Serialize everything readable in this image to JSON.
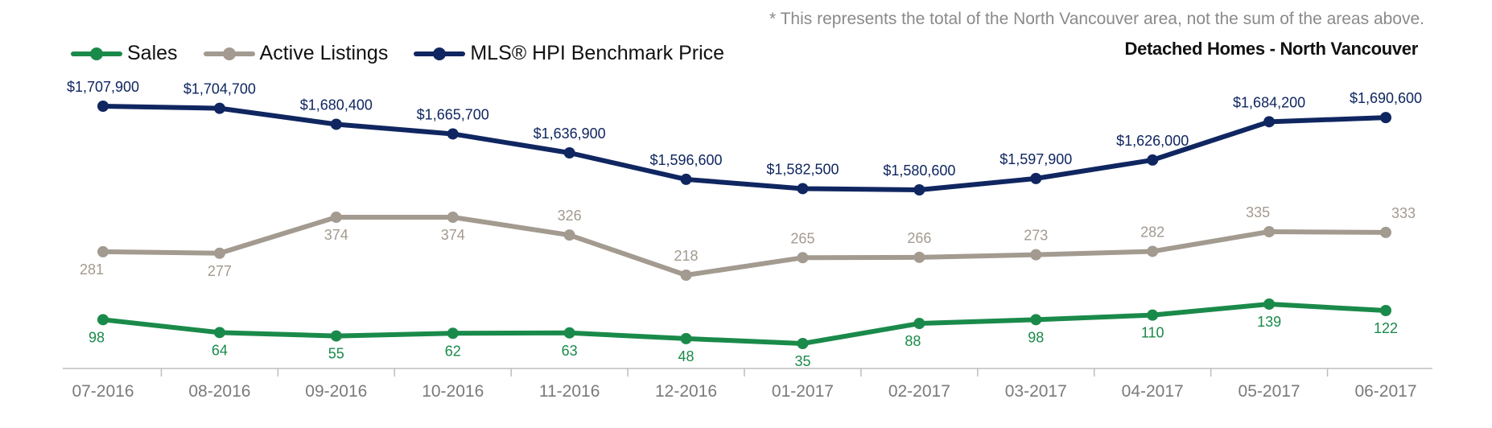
{
  "footnote": "* This represents the total of the North Vancouver area, not the sum of the areas above.",
  "subtitle": "Detached Homes - North Vancouver",
  "chart_data": {
    "type": "line",
    "categories": [
      "07-2016",
      "08-2016",
      "09-2016",
      "10-2016",
      "11-2016",
      "12-2016",
      "01-2017",
      "02-2017",
      "03-2017",
      "04-2017",
      "05-2017",
      "06-2017"
    ],
    "legend_position": "top-left",
    "grid": false,
    "series": [
      {
        "name": "Sales",
        "color": "#1a8a4a",
        "values": [
          98,
          64,
          55,
          62,
          63,
          48,
          35,
          88,
          98,
          110,
          139,
          122
        ],
        "labels": [
          "98",
          "64",
          "55",
          "62",
          "63",
          "48",
          "35",
          "88",
          "98",
          "110",
          "139",
          "122"
        ]
      },
      {
        "name": "Active Listings",
        "color": "#a39a90",
        "values": [
          281,
          277,
          374,
          374,
          326,
          218,
          265,
          266,
          273,
          282,
          335,
          333
        ],
        "labels": [
          "281",
          "277",
          "374",
          "374",
          "326",
          "218",
          "265",
          "266",
          "273",
          "282",
          "335",
          "333"
        ]
      },
      {
        "name": "MLS® HPI Benchmark Price",
        "color": "#0f2660",
        "values": [
          1707900,
          1704700,
          1680400,
          1665700,
          1636900,
          1596600,
          1582500,
          1580600,
          1597900,
          1626000,
          1684200,
          1690600
        ],
        "labels": [
          "$1,707,900",
          "$1,704,700",
          "$1,680,400",
          "$1,665,700",
          "$1,636,900",
          "$1,596,600",
          "$1,582,500",
          "$1,580,600",
          "$1,597,900",
          "$1,626,000",
          "$1,684,200",
          "$1,690,600"
        ]
      }
    ]
  }
}
